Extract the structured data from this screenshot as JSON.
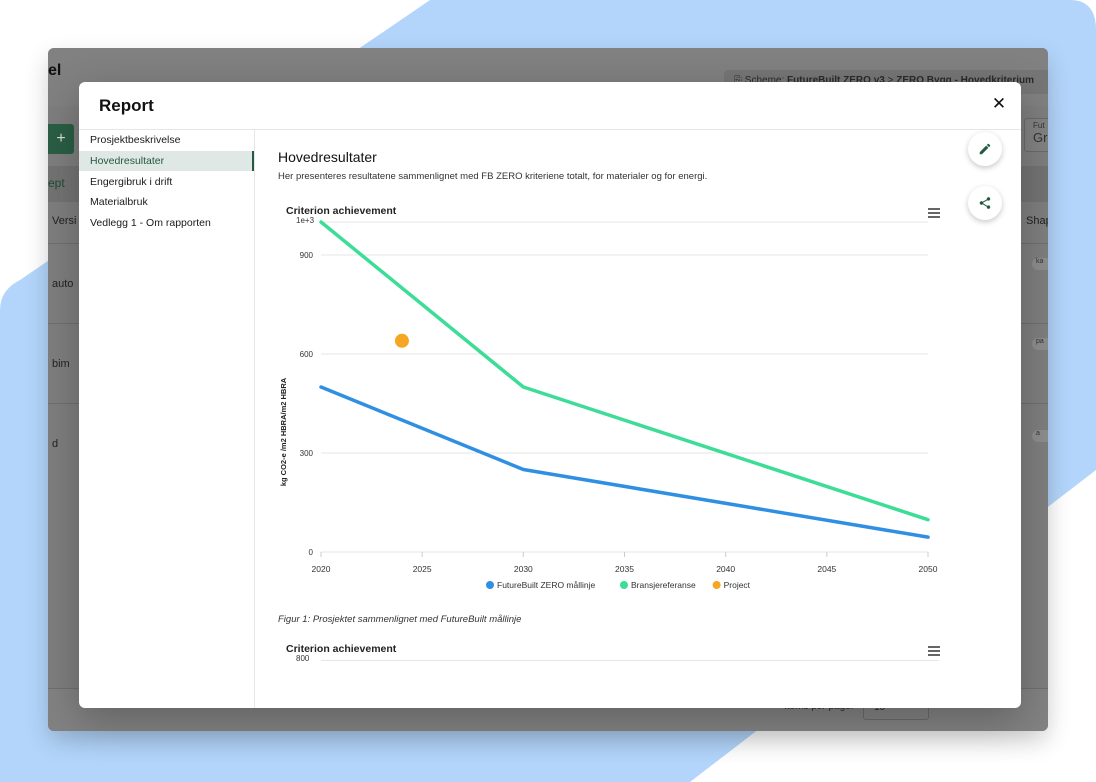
{
  "background_app": {
    "title_fragment": "el",
    "breadcrumb_scheme_label": "Scheme:",
    "breadcrumb_scheme": "FutureBuilt ZERO v3",
    "breadcrumb_sep": ">",
    "breadcrumb_criterion": "ZERO Bygg - Hovedkriterium",
    "add_label": "+",
    "tab_label": "ept",
    "column_version": "Versi",
    "column_shape": "Shap",
    "rows": [
      "auto",
      "bim",
      "d"
    ],
    "chips": [
      "ka",
      "pa",
      "a"
    ],
    "fut_label": "Fut",
    "fut_value": "Gr",
    "items_per_page_label": "Items per page:",
    "items_per_page_value": "10",
    "page_range": "1 - 3 of 3"
  },
  "modal": {
    "title": "Report",
    "close_icon": "close-icon",
    "nav": [
      {
        "label": "Prosjektbeskrivelse",
        "active": false
      },
      {
        "label": "Hovedresultater",
        "active": true
      },
      {
        "label": "Engergibruk i drift",
        "active": false
      },
      {
        "label": "Materialbruk",
        "active": false
      },
      {
        "label": "Vedlegg 1 - Om rapporten",
        "active": false
      }
    ],
    "section_title": "Hovedresultater",
    "section_desc": "Her presenteres resultatene sammenlignet med FB ZERO kriteriene totalt, for materialer og for energi.",
    "edit_icon": "pencil-icon",
    "share_icon": "share-icon",
    "figure_caption": "Figur 1: Prosjektet sammenlignet med FutureBuilt mållinje",
    "second_chart_title": "Criterion achievement",
    "second_chart_top_tick": "800"
  },
  "chart_data": {
    "type": "line",
    "title": "Criterion achievement",
    "ylabel": "kg CO2-e /m2 HBRA/m2 HBRA",
    "y_exponent_label": "1e+3",
    "xlim": [
      2020,
      2050
    ],
    "ylim": [
      0,
      1000
    ],
    "x_ticks": [
      "2020",
      "2025",
      "2030",
      "2035",
      "2040",
      "2045",
      "2050"
    ],
    "y_ticks": [
      "0",
      "300",
      "600",
      "900"
    ],
    "grid": true,
    "legend_position": "bottom",
    "series": [
      {
        "name": "FutureBuilt ZERO mållinje",
        "type": "line",
        "color": "#2f8fe3",
        "x": [
          2020,
          2030,
          2050
        ],
        "y": [
          500,
          250,
          45
        ]
      },
      {
        "name": "Bransjereferanse",
        "type": "line",
        "color": "#3ddc97",
        "x": [
          2020,
          2030,
          2050
        ],
        "y": [
          1000,
          500,
          98
        ]
      },
      {
        "name": "Project",
        "type": "scatter",
        "color": "#f5a623",
        "x": [
          2024
        ],
        "y": [
          640
        ]
      }
    ]
  }
}
